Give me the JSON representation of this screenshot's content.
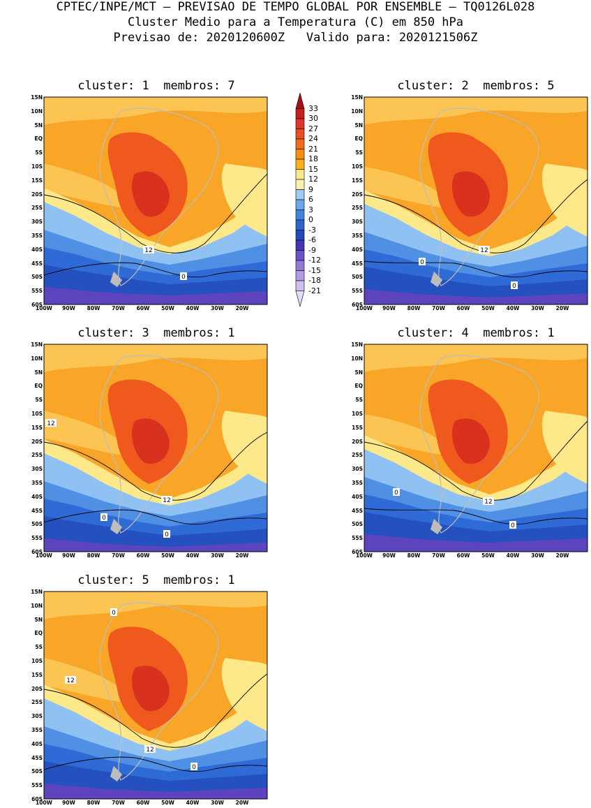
{
  "header": {
    "line1": "CPTEC/INPE/MCT – PREVISAO DE TEMPO GLOBAL POR ENSEMBLE – TQ0126L028",
    "line2": "Cluster Medio para a Temperatura (C) em 850 hPa",
    "line3": "Previsao de: 2020120600Z   Valido para: 2020121506Z"
  },
  "panels": [
    {
      "title": "cluster: 1  membros: 7",
      "contour_labels": [
        "12",
        "0"
      ]
    },
    {
      "title": "cluster: 2  membros: 5",
      "contour_labels": [
        "12",
        "0",
        "0"
      ]
    },
    {
      "title": "cluster: 3  membros: 1",
      "contour_labels": [
        "12",
        "12",
        "0",
        "0"
      ]
    },
    {
      "title": "cluster: 4  membros: 1",
      "contour_labels": [
        "12",
        "0",
        "0"
      ]
    },
    {
      "title": "cluster: 5  membros: 1",
      "contour_labels": [
        "12",
        "12",
        "0",
        "0"
      ]
    }
  ],
  "lat_ticks": [
    "15N",
    "10N",
    "5N",
    "EQ",
    "5S",
    "10S",
    "15S",
    "20S",
    "25S",
    "30S",
    "35S",
    "40S",
    "45S",
    "50S",
    "55S",
    "60S"
  ],
  "lon_ticks": [
    "100W",
    "90W",
    "80W",
    "70W",
    "60W",
    "50W",
    "40W",
    "30W",
    "20W"
  ],
  "colorbar": {
    "labels": [
      "33",
      "30",
      "27",
      "24",
      "21",
      "18",
      "15",
      "12",
      "9",
      "6",
      "3",
      "0",
      "-3",
      "-6",
      "-9",
      "-12",
      "-15",
      "-18",
      "-21"
    ],
    "colors": [
      "#a50f15",
      "#c81e1e",
      "#e0342a",
      "#ea4d22",
      "#f26b1d",
      "#f78e12",
      "#fbb017",
      "#fde98a",
      "#f7f2b0",
      "#9ecbf5",
      "#6aa8ee",
      "#3f85e0",
      "#2c63cf",
      "#2349b8",
      "#4438b2",
      "#6b52c8",
      "#9179d8",
      "#b29ce5",
      "#cfc0f0",
      "#e4dbf7"
    ]
  },
  "colors": {
    "warm_orange": "#f9a527",
    "light_orange": "#fcc453",
    "red_orange": "#f0591e",
    "deep_red": "#d8321f",
    "pale_yellow": "#fde98a",
    "light_blue": "#8fc2f2",
    "mid_blue": "#4f8fe4",
    "blue": "#2f6bd6",
    "dark_blue": "#2450c0",
    "violet": "#5e44bc",
    "land": "#bdbdbd"
  }
}
